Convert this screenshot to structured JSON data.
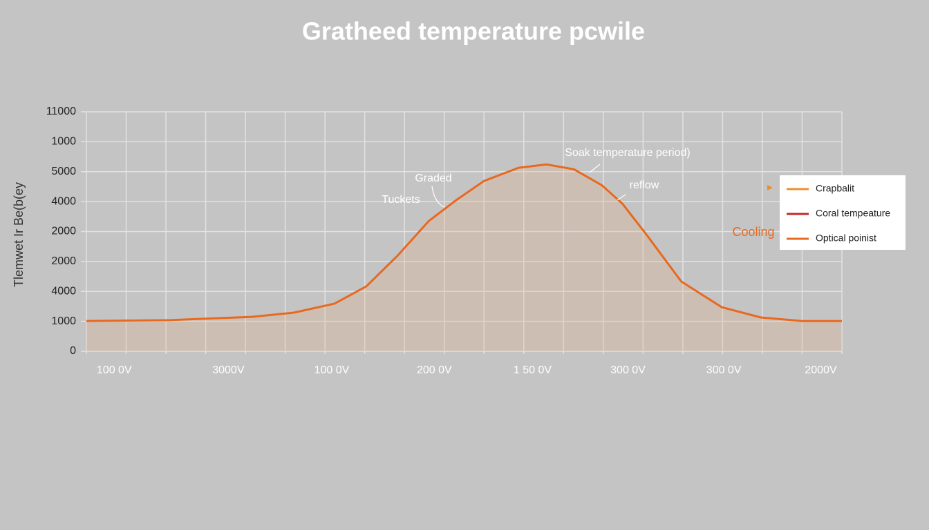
{
  "chart_data": {
    "type": "area",
    "title": "Grathеed temperature pcwile",
    "y_label": "Tlemwet Ir Be(b(ey",
    "x": [
      0,
      2.09,
      4.17,
      5.22,
      6.24,
      7.04,
      7.83,
      8.61,
      9.3,
      10.0,
      10.87,
      11.57,
      12.26,
      12.96,
      13.48,
      14.09,
      14.96,
      15.98,
      16.96,
      18.0,
      19
    ],
    "series": [
      {
        "name": "Crapbalit",
        "color": "#e8691e",
        "values": [
          1.01,
          1.04,
          1.15,
          1.29,
          1.59,
          2.17,
          3.2,
          4.35,
          5.05,
          5.69,
          6.13,
          6.24,
          6.08,
          5.55,
          4.93,
          3.89,
          2.33,
          1.47,
          1.13,
          1.01,
          1.01
        ]
      }
    ],
    "legend": [
      {
        "label": "Crapbalit",
        "color": "#e8902e"
      },
      {
        "label": "Coral tempeature",
        "color": "#c62828"
      },
      {
        "label": "Optical poinist",
        "color": "#e8691e"
      }
    ],
    "xlim": [
      0,
      19
    ],
    "ylim": [
      0,
      8
    ],
    "xticks": [
      {
        "value": 0.7,
        "label": "100 0V"
      },
      {
        "value": 3.57,
        "label": "3000V"
      },
      {
        "value": 6.17,
        "label": "100 0V"
      },
      {
        "value": 8.75,
        "label": "200 0V"
      },
      {
        "value": 11.22,
        "label": "1 50 0V"
      },
      {
        "value": 13.62,
        "label": "300 0V"
      },
      {
        "value": 16.03,
        "label": "300 0V"
      },
      {
        "value": 18.47,
        "label": "2000V"
      }
    ],
    "yticks": [
      0,
      {
        "value": 1,
        "label": "1000"
      },
      {
        "value": 2,
        "label": "4000"
      },
      {
        "value": 3,
        "label": "2000"
      },
      {
        "value": 4,
        "label": "2000"
      },
      {
        "value": 5,
        "label": "4000"
      },
      {
        "value": 6,
        "label": "5000"
      },
      {
        "value": 7,
        "label": "1000"
      },
      {
        "value": 8,
        "label": "11000"
      }
    ],
    "xgrid": [
      0,
      1,
      2,
      3,
      4,
      5,
      6,
      7,
      8,
      9,
      10,
      11,
      12,
      13,
      14,
      15,
      16,
      17,
      18,
      19
    ],
    "grid": true,
    "annotations": [
      "Soak temperature period)",
      "reflow",
      "Graded",
      "Tuckets",
      "Cooling"
    ]
  }
}
